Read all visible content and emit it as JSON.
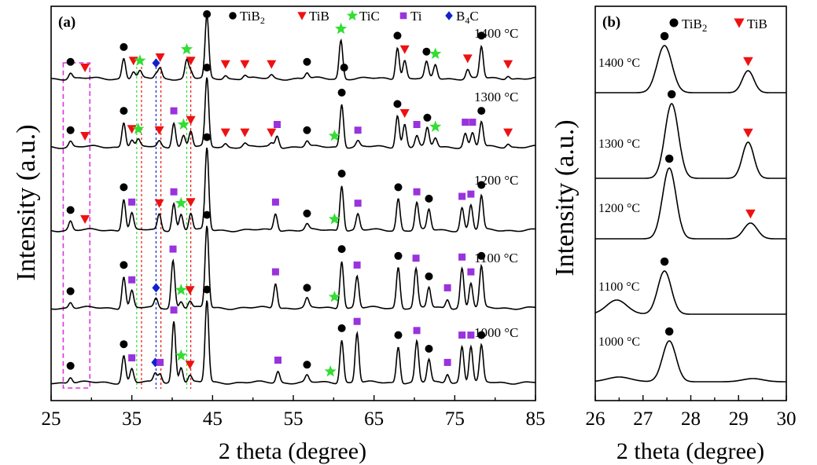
{
  "chart_data": [
    {
      "type": "line",
      "panel_label": "(a)",
      "xlabel": "2 theta (degree)",
      "ylabel": "Intensity (a.u.)",
      "xlim": [
        25,
        85
      ],
      "xticks": [
        "25",
        "35",
        "45",
        "55",
        "65",
        "75",
        "85"
      ],
      "legend": [
        {
          "label": "TiB",
          "sub": "2",
          "marker": "circle",
          "color": "#000000"
        },
        {
          "label": "TiB",
          "sub": "",
          "marker": "triangle",
          "color": "#ee1111"
        },
        {
          "label": "TiC",
          "sub": "",
          "marker": "star",
          "color": "#33dd33"
        },
        {
          "label": "Ti",
          "sub": "",
          "marker": "square",
          "color": "#9933dd"
        },
        {
          "label": "B",
          "sub": "4",
          "tail": "C",
          "marker": "diamond",
          "color": "#1122cc"
        }
      ],
      "series": [
        {
          "name": "1400 °C",
          "label": "1400 °C",
          "peaks": [
            {
              "x": 27.4,
              "h": 5,
              "m": "circle"
            },
            {
              "x": 29.2,
              "h": 0,
              "m": "triangle"
            },
            {
              "x": 34.0,
              "h": 18,
              "m": "circle"
            },
            {
              "x": 35.2,
              "h": 6,
              "m": "triangle"
            },
            {
              "x": 36.0,
              "h": 6,
              "m": "star"
            },
            {
              "x": 38.0,
              "h": 4,
              "m": "diamond"
            },
            {
              "x": 38.5,
              "h": 9,
              "m": "triangle"
            },
            {
              "x": 41.8,
              "h": 16,
              "m": "star"
            },
            {
              "x": 42.3,
              "h": 6,
              "m": "triangle"
            },
            {
              "x": 44.3,
              "h": 55,
              "m": "circle"
            },
            {
              "x": 46.6,
              "h": 3,
              "m": "triangle"
            },
            {
              "x": 49.0,
              "h": 3,
              "m": "triangle"
            },
            {
              "x": 52.3,
              "h": 3,
              "m": "triangle"
            },
            {
              "x": 56.7,
              "h": 5,
              "m": "circle"
            },
            {
              "x": 60.9,
              "h": 34,
              "m": "star"
            },
            {
              "x": 61.3,
              "h": 0,
              "m": "circle"
            },
            {
              "x": 67.9,
              "h": 28,
              "m": "circle"
            },
            {
              "x": 68.8,
              "h": 16,
              "m": "triangle"
            },
            {
              "x": 71.5,
              "h": 14,
              "m": "circle"
            },
            {
              "x": 72.6,
              "h": 12,
              "m": "star"
            },
            {
              "x": 76.6,
              "h": 8,
              "m": "triangle"
            },
            {
              "x": 78.3,
              "h": 28,
              "m": "circle"
            },
            {
              "x": 81.6,
              "h": 3,
              "m": "triangle"
            }
          ]
        },
        {
          "name": "1300 °C",
          "label": "1300 °C",
          "peaks": [
            {
              "x": 27.4,
              "h": 5,
              "m": "circle"
            },
            {
              "x": 29.2,
              "h": 0,
              "m": "triangle"
            },
            {
              "x": 34.0,
              "h": 22,
              "m": "circle"
            },
            {
              "x": 35.0,
              "h": 6,
              "m": "triangle"
            },
            {
              "x": 35.8,
              "h": 6,
              "m": "star"
            },
            {
              "x": 38.4,
              "h": 5,
              "m": "triangle"
            },
            {
              "x": 40.2,
              "h": 22,
              "m": "square"
            },
            {
              "x": 41.4,
              "h": 10,
              "m": "star"
            },
            {
              "x": 42.3,
              "h": 14,
              "m": "triangle"
            },
            {
              "x": 44.3,
              "h": 60,
              "m": "circle"
            },
            {
              "x": 46.6,
              "h": 3,
              "m": "triangle"
            },
            {
              "x": 49.0,
              "h": 3,
              "m": "triangle"
            },
            {
              "x": 52.3,
              "h": 3,
              "m": "triangle"
            },
            {
              "x": 53.0,
              "h": 10,
              "m": "square"
            },
            {
              "x": 56.7,
              "h": 5,
              "m": "circle"
            },
            {
              "x": 60.1,
              "h": 0,
              "m": "star"
            },
            {
              "x": 61.0,
              "h": 38,
              "m": "circle"
            },
            {
              "x": 63.0,
              "h": 5,
              "m": "square"
            },
            {
              "x": 67.9,
              "h": 28,
              "m": "circle"
            },
            {
              "x": 68.8,
              "h": 20,
              "m": "triangle"
            },
            {
              "x": 70.3,
              "h": 10,
              "m": "square"
            },
            {
              "x": 71.6,
              "h": 16,
              "m": "circle"
            },
            {
              "x": 72.6,
              "h": 8,
              "m": "star"
            },
            {
              "x": 76.3,
              "h": 12,
              "m": "square"
            },
            {
              "x": 77.2,
              "h": 12,
              "m": "square"
            },
            {
              "x": 78.3,
              "h": 22,
              "m": "circle"
            },
            {
              "x": 81.6,
              "h": 3,
              "m": "triangle"
            }
          ]
        },
        {
          "name": "1200 °C",
          "label": "1200 °C",
          "peaks": [
            {
              "x": 27.4,
              "h": 8,
              "m": "circle"
            },
            {
              "x": 29.2,
              "h": 0,
              "m": "triangle"
            },
            {
              "x": 34.0,
              "h": 28,
              "m": "circle"
            },
            {
              "x": 35.0,
              "h": 15,
              "m": "square"
            },
            {
              "x": 38.4,
              "h": 14,
              "m": "triangle"
            },
            {
              "x": 40.2,
              "h": 24,
              "m": "square"
            },
            {
              "x": 41.1,
              "h": 14,
              "m": "star"
            },
            {
              "x": 42.3,
              "h": 15,
              "m": "triangle"
            },
            {
              "x": 44.3,
              "h": 72,
              "m": "circle"
            },
            {
              "x": 52.8,
              "h": 15,
              "m": "square"
            },
            {
              "x": 56.7,
              "h": 5,
              "m": "circle"
            },
            {
              "x": 60.1,
              "h": 0,
              "m": "star"
            },
            {
              "x": 61.0,
              "h": 40,
              "m": "circle"
            },
            {
              "x": 63.0,
              "h": 14,
              "m": "square"
            },
            {
              "x": 68.0,
              "h": 28,
              "m": "circle"
            },
            {
              "x": 70.3,
              "h": 24,
              "m": "square"
            },
            {
              "x": 71.8,
              "h": 18,
              "m": "circle"
            },
            {
              "x": 75.9,
              "h": 20,
              "m": "square"
            },
            {
              "x": 77.0,
              "h": 22,
              "m": "square"
            },
            {
              "x": 78.3,
              "h": 30,
              "m": "circle"
            }
          ]
        },
        {
          "name": "1100 °C",
          "label": "1100 °C",
          "peaks": [
            {
              "x": 27.4,
              "h": 5,
              "m": "circle"
            },
            {
              "x": 34.0,
              "h": 28,
              "m": "circle"
            },
            {
              "x": 35.0,
              "h": 15,
              "m": "square"
            },
            {
              "x": 38.0,
              "h": 8,
              "m": "diamond"
            },
            {
              "x": 40.1,
              "h": 42,
              "m": "square"
            },
            {
              "x": 41.1,
              "h": 6,
              "m": "star"
            },
            {
              "x": 42.2,
              "h": 6,
              "m": "triangle"
            },
            {
              "x": 44.3,
              "h": 72,
              "m": "circle"
            },
            {
              "x": 52.8,
              "h": 22,
              "m": "square"
            },
            {
              "x": 56.7,
              "h": 8,
              "m": "circle"
            },
            {
              "x": 60.1,
              "h": 0,
              "m": "star"
            },
            {
              "x": 61.0,
              "h": 42,
              "m": "circle"
            },
            {
              "x": 62.9,
              "h": 28,
              "m": "square"
            },
            {
              "x": 68.0,
              "h": 36,
              "m": "circle"
            },
            {
              "x": 70.2,
              "h": 34,
              "m": "square"
            },
            {
              "x": 71.8,
              "h": 18,
              "m": "circle"
            },
            {
              "x": 74.1,
              "h": 8,
              "m": "square"
            },
            {
              "x": 75.9,
              "h": 35,
              "m": "square"
            },
            {
              "x": 77.0,
              "h": 22,
              "m": "square"
            },
            {
              "x": 78.3,
              "h": 36,
              "m": "circle"
            }
          ]
        },
        {
          "name": "1000 °C",
          "label": "1000 °C",
          "peaks": [
            {
              "x": 27.4,
              "h": 5,
              "m": "circle"
            },
            {
              "x": 34.0,
              "h": 24,
              "m": "circle"
            },
            {
              "x": 35.0,
              "h": 12,
              "m": "square"
            },
            {
              "x": 37.9,
              "h": 8,
              "m": "diamond"
            },
            {
              "x": 38.5,
              "h": 8,
              "m": "square"
            },
            {
              "x": 40.2,
              "h": 54,
              "m": "square"
            },
            {
              "x": 41.1,
              "h": 14,
              "m": "star"
            },
            {
              "x": 42.2,
              "h": 6,
              "m": "triangle"
            },
            {
              "x": 44.3,
              "h": 72,
              "m": "circle"
            },
            {
              "x": 53.1,
              "h": 10,
              "m": "square"
            },
            {
              "x": 56.7,
              "h": 6,
              "m": "circle"
            },
            {
              "x": 59.6,
              "h": 0,
              "m": "star"
            },
            {
              "x": 61.0,
              "h": 38,
              "m": "circle"
            },
            {
              "x": 62.9,
              "h": 44,
              "m": "square"
            },
            {
              "x": 68.0,
              "h": 32,
              "m": "circle"
            },
            {
              "x": 70.3,
              "h": 36,
              "m": "square"
            },
            {
              "x": 71.8,
              "h": 20,
              "m": "circle"
            },
            {
              "x": 74.1,
              "h": 8,
              "m": "square"
            },
            {
              "x": 75.9,
              "h": 32,
              "m": "square"
            },
            {
              "x": 77.0,
              "h": 32,
              "m": "square"
            },
            {
              "x": 78.3,
              "h": 32,
              "m": "circle"
            }
          ]
        }
      ],
      "highlight_box": {
        "x_from": 26.5,
        "x_to": 29.8,
        "color": "#dd33dd"
      },
      "reference_lines": [
        {
          "x": 35.6,
          "color": "#33dd33"
        },
        {
          "x": 36.2,
          "color": "#ee1111"
        },
        {
          "x": 38.0,
          "color": "#1122cc"
        },
        {
          "x": 38.6,
          "color": "#ee1111"
        },
        {
          "x": 41.8,
          "color": "#33dd33"
        },
        {
          "x": 42.3,
          "color": "#ee1111"
        }
      ]
    },
    {
      "type": "line",
      "panel_label": "(b)",
      "xlabel": "2 theta (degree)",
      "ylabel": "Intensity (a.u.)",
      "xlim": [
        26,
        30
      ],
      "xticks": [
        "26",
        "27",
        "28",
        "29",
        "30"
      ],
      "legend": [
        {
          "label": "TiB",
          "sub": "2",
          "marker": "circle",
          "color": "#000000"
        },
        {
          "label": "TiB",
          "sub": "",
          "marker": "triangle",
          "color": "#ee1111"
        }
      ],
      "series": [
        {
          "name": "1400 °C",
          "label": "1400 °C",
          "peaks": [
            {
              "x": 27.45,
              "h": 60,
              "w": 0.22,
              "m": "circle"
            },
            {
              "x": 29.2,
              "h": 28,
              "w": 0.17,
              "m": "triangle"
            }
          ]
        },
        {
          "name": "1300 °C",
          "label": "1300 °C",
          "peaks": [
            {
              "x": 27.6,
              "h": 95,
              "w": 0.2,
              "m": "circle"
            },
            {
              "x": 29.2,
              "h": 46,
              "w": 0.17,
              "m": "triangle"
            }
          ]
        },
        {
          "name": "1200 °C",
          "label": "1200 °C",
          "peaks": [
            {
              "x": 27.55,
              "h": 90,
              "w": 0.2,
              "m": "circle"
            },
            {
              "x": 29.25,
              "h": 20,
              "w": 0.2,
              "m": "triangle"
            }
          ]
        },
        {
          "name": "1100 °C",
          "label": "1100 °C",
          "peaks": [
            {
              "x": 27.45,
              "h": 55,
              "w": 0.2,
              "m": "circle"
            },
            {
              "x": 29.2,
              "h": 0,
              "w": 0.3,
              "m": "none"
            }
          ]
        },
        {
          "name": "1000 °C",
          "label": "1000 °C",
          "peaks": [
            {
              "x": 27.55,
              "h": 52,
              "w": 0.2,
              "m": "circle"
            },
            {
              "x": 29.3,
              "h": 4,
              "w": 0.3,
              "m": "none"
            }
          ]
        }
      ]
    }
  ]
}
